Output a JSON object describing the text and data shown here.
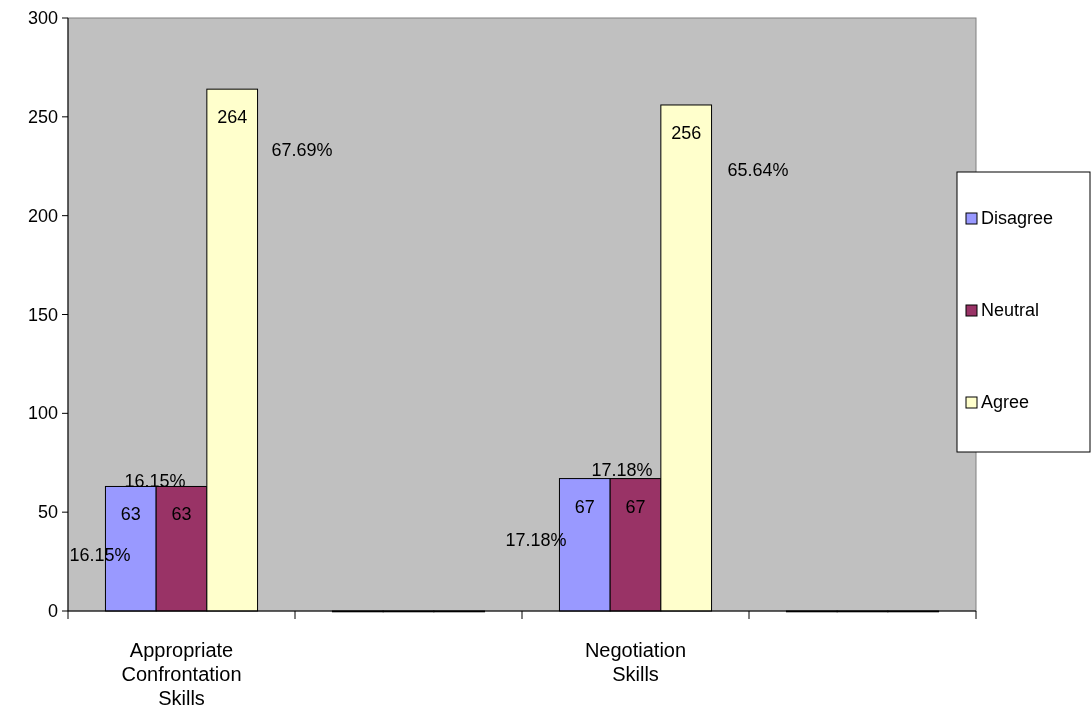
{
  "chart_data": {
    "type": "bar",
    "categories": [
      "Appropriate Confrontation Skills",
      null,
      "Negotiation Skills",
      null
    ],
    "series": [
      {
        "name": "Disagree",
        "color": "#9999ff",
        "values": [
          63,
          0,
          67,
          0
        ],
        "value_labels": [
          "63",
          null,
          "67",
          null
        ]
      },
      {
        "name": "Neutral",
        "color": "#993366",
        "values": [
          63,
          0,
          67,
          0
        ],
        "value_labels": [
          "63",
          null,
          "67",
          null
        ]
      },
      {
        "name": "Agree",
        "color": "#ffffcc",
        "values": [
          264,
          0,
          256,
          0
        ],
        "value_labels": [
          "264",
          null,
          "256",
          null
        ]
      }
    ],
    "ylim": [
      0,
      300
    ],
    "yticks": [
      0,
      50,
      100,
      150,
      200,
      250,
      300
    ],
    "grid": false,
    "legend": "right",
    "annotations": [
      "16.15%",
      "16.15%",
      "67.69%",
      "17.18%",
      "17.18%",
      "65.64%"
    ]
  }
}
